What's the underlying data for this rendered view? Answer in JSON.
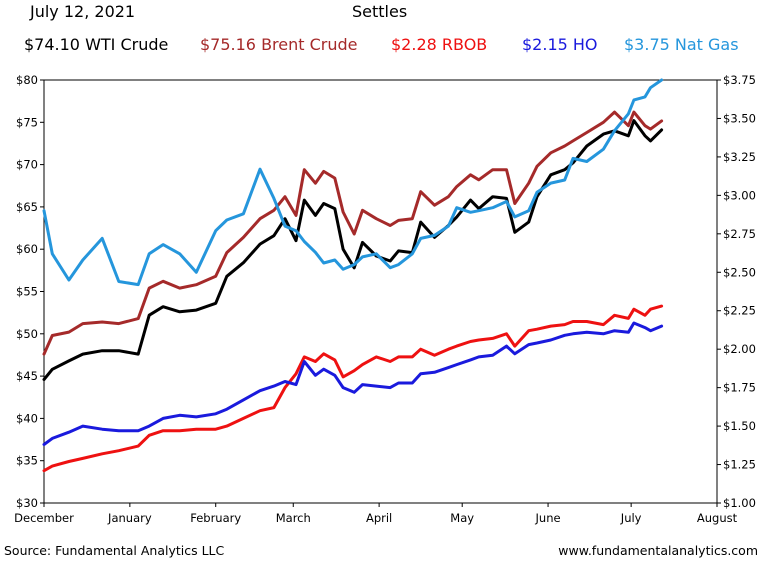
{
  "header": {
    "date": "July 12, 2021",
    "title": "Settles",
    "legend": [
      {
        "label": "$74.10 WTI Crude",
        "color": "#000000"
      },
      {
        "label": "$75.16 Brent Crude",
        "color": "#a52a2a"
      },
      {
        "label": "$2.28 RBOB",
        "color": "#ee1111"
      },
      {
        "label": "$2.15 HO",
        "color": "#1a1add"
      },
      {
        "label": "$3.75 Nat Gas",
        "color": "#2596dc"
      }
    ]
  },
  "footer": {
    "source": "Source: Fundamental Analytics LLC",
    "website": "www.fundamentalanalytics.com"
  },
  "chart_data": {
    "type": "line",
    "title": "Settles",
    "subtitle": "July 12, 2021",
    "x_axis": {
      "type": "date",
      "range": [
        "2020-12-01",
        "2021-08-01"
      ],
      "tick_labels": [
        "December",
        "January",
        "February",
        "March",
        "April",
        "May",
        "June",
        "July",
        "August"
      ]
    },
    "y_left": {
      "range": [
        30,
        80
      ],
      "ticks": [
        30,
        35,
        40,
        45,
        50,
        55,
        60,
        65,
        70,
        75,
        80
      ],
      "tick_labels": [
        "$30",
        "$35",
        "$40",
        "$45",
        "$50",
        "$55",
        "$60",
        "$65",
        "$70",
        "$75",
        "$80"
      ]
    },
    "y_right": {
      "range": [
        1.0,
        3.75
      ],
      "ticks": [
        1.0,
        1.25,
        1.5,
        1.75,
        2.0,
        2.25,
        2.5,
        2.75,
        3.0,
        3.25,
        3.5,
        3.75
      ],
      "tick_labels": [
        "$1.00",
        "$1.25",
        "$1.50",
        "$1.75",
        "$2.00",
        "$2.25",
        "$2.50",
        "$2.75",
        "$3.00",
        "$3.25",
        "$3.50",
        "$3.75"
      ]
    },
    "grid": false,
    "series": [
      {
        "name": "WTI Crude",
        "axis": "left",
        "color": "#000000",
        "x": [
          "2020-12-01",
          "2020-12-04",
          "2020-12-10",
          "2020-12-15",
          "2020-12-22",
          "2020-12-28",
          "2021-01-04",
          "2021-01-08",
          "2021-01-13",
          "2021-01-19",
          "2021-01-25",
          "2021-02-01",
          "2021-02-05",
          "2021-02-11",
          "2021-02-17",
          "2021-02-22",
          "2021-02-26",
          "2021-03-02",
          "2021-03-05",
          "2021-03-09",
          "2021-03-12",
          "2021-03-16",
          "2021-03-19",
          "2021-03-23",
          "2021-03-26",
          "2021-03-31",
          "2021-04-05",
          "2021-04-08",
          "2021-04-13",
          "2021-04-16",
          "2021-04-21",
          "2021-04-26",
          "2021-04-29",
          "2021-05-04",
          "2021-05-07",
          "2021-05-12",
          "2021-05-17",
          "2021-05-20",
          "2021-05-25",
          "2021-05-28",
          "2021-06-02",
          "2021-06-07",
          "2021-06-10",
          "2021-06-15",
          "2021-06-21",
          "2021-06-25",
          "2021-06-30",
          "2021-07-02",
          "2021-07-06",
          "2021-07-08",
          "2021-07-12"
        ],
        "values": [
          44.6,
          45.8,
          46.8,
          47.6,
          48.0,
          48.0,
          47.6,
          52.2,
          53.2,
          52.6,
          52.8,
          53.6,
          56.8,
          58.4,
          60.6,
          61.6,
          63.6,
          61.0,
          65.8,
          64.0,
          65.4,
          64.8,
          60.0,
          57.8,
          60.8,
          59.2,
          58.6,
          59.8,
          59.6,
          63.2,
          61.4,
          62.8,
          63.8,
          65.8,
          64.8,
          66.2,
          66.0,
          62.0,
          63.2,
          66.2,
          68.8,
          69.4,
          70.2,
          72.2,
          73.6,
          74.0,
          73.4,
          75.2,
          73.4,
          72.8,
          74.1
        ]
      },
      {
        "name": "Brent Crude",
        "axis": "left",
        "color": "#a52a2a",
        "x": [
          "2020-12-01",
          "2020-12-04",
          "2020-12-10",
          "2020-12-15",
          "2020-12-22",
          "2020-12-28",
          "2021-01-04",
          "2021-01-08",
          "2021-01-13",
          "2021-01-19",
          "2021-01-25",
          "2021-02-01",
          "2021-02-05",
          "2021-02-11",
          "2021-02-17",
          "2021-02-22",
          "2021-02-26",
          "2021-03-02",
          "2021-03-05",
          "2021-03-09",
          "2021-03-12",
          "2021-03-16",
          "2021-03-19",
          "2021-03-23",
          "2021-03-26",
          "2021-03-31",
          "2021-04-05",
          "2021-04-08",
          "2021-04-13",
          "2021-04-16",
          "2021-04-21",
          "2021-04-26",
          "2021-04-29",
          "2021-05-04",
          "2021-05-07",
          "2021-05-12",
          "2021-05-17",
          "2021-05-20",
          "2021-05-25",
          "2021-05-28",
          "2021-06-02",
          "2021-06-07",
          "2021-06-10",
          "2021-06-15",
          "2021-06-21",
          "2021-06-25",
          "2021-06-30",
          "2021-07-02",
          "2021-07-06",
          "2021-07-08",
          "2021-07-12"
        ],
        "values": [
          47.6,
          49.8,
          50.2,
          51.2,
          51.4,
          51.2,
          51.8,
          55.4,
          56.2,
          55.4,
          55.8,
          56.8,
          59.6,
          61.4,
          63.6,
          64.6,
          66.2,
          64.0,
          69.4,
          67.8,
          69.2,
          68.4,
          64.4,
          61.8,
          64.6,
          63.6,
          62.8,
          63.4,
          63.6,
          66.8,
          65.2,
          66.2,
          67.4,
          68.8,
          68.2,
          69.4,
          69.4,
          65.4,
          67.8,
          69.8,
          71.4,
          72.2,
          72.8,
          73.8,
          75.0,
          76.2,
          74.6,
          76.2,
          74.6,
          74.2,
          75.16
        ]
      },
      {
        "name": "RBOB",
        "axis": "right",
        "color": "#ee1111",
        "x": [
          "2020-12-01",
          "2020-12-04",
          "2020-12-10",
          "2020-12-15",
          "2020-12-22",
          "2020-12-28",
          "2021-01-04",
          "2021-01-08",
          "2021-01-13",
          "2021-01-19",
          "2021-01-25",
          "2021-02-01",
          "2021-02-05",
          "2021-02-11",
          "2021-02-17",
          "2021-02-22",
          "2021-02-26",
          "2021-03-02",
          "2021-03-05",
          "2021-03-09",
          "2021-03-12",
          "2021-03-16",
          "2021-03-19",
          "2021-03-23",
          "2021-03-26",
          "2021-03-31",
          "2021-04-05",
          "2021-04-08",
          "2021-04-13",
          "2021-04-16",
          "2021-04-21",
          "2021-04-26",
          "2021-04-29",
          "2021-05-04",
          "2021-05-07",
          "2021-05-12",
          "2021-05-17",
          "2021-05-20",
          "2021-05-25",
          "2021-05-28",
          "2021-06-02",
          "2021-06-07",
          "2021-06-10",
          "2021-06-15",
          "2021-06-21",
          "2021-06-25",
          "2021-06-30",
          "2021-07-02",
          "2021-07-06",
          "2021-07-08",
          "2021-07-12"
        ],
        "values": [
          1.21,
          1.24,
          1.27,
          1.29,
          1.32,
          1.34,
          1.37,
          1.44,
          1.47,
          1.47,
          1.48,
          1.48,
          1.5,
          1.55,
          1.6,
          1.62,
          1.75,
          1.84,
          1.95,
          1.92,
          1.97,
          1.93,
          1.82,
          1.86,
          1.9,
          1.95,
          1.92,
          1.95,
          1.95,
          2.0,
          1.96,
          2.0,
          2.02,
          2.05,
          2.06,
          2.07,
          2.1,
          2.02,
          2.12,
          2.13,
          2.15,
          2.16,
          2.18,
          2.18,
          2.16,
          2.22,
          2.2,
          2.26,
          2.22,
          2.26,
          2.28
        ]
      },
      {
        "name": "HO",
        "axis": "right",
        "color": "#1a1add",
        "x": [
          "2020-12-01",
          "2020-12-04",
          "2020-12-10",
          "2020-12-15",
          "2020-12-22",
          "2020-12-28",
          "2021-01-04",
          "2021-01-08",
          "2021-01-13",
          "2021-01-19",
          "2021-01-25",
          "2021-02-01",
          "2021-02-05",
          "2021-02-11",
          "2021-02-17",
          "2021-02-22",
          "2021-02-26",
          "2021-03-02",
          "2021-03-05",
          "2021-03-09",
          "2021-03-12",
          "2021-03-16",
          "2021-03-19",
          "2021-03-23",
          "2021-03-26",
          "2021-03-31",
          "2021-04-05",
          "2021-04-08",
          "2021-04-13",
          "2021-04-16",
          "2021-04-21",
          "2021-04-26",
          "2021-04-29",
          "2021-05-04",
          "2021-05-07",
          "2021-05-12",
          "2021-05-17",
          "2021-05-20",
          "2021-05-25",
          "2021-05-28",
          "2021-06-02",
          "2021-06-07",
          "2021-06-10",
          "2021-06-15",
          "2021-06-21",
          "2021-06-25",
          "2021-06-30",
          "2021-07-02",
          "2021-07-06",
          "2021-07-08",
          "2021-07-12"
        ],
        "values": [
          1.38,
          1.42,
          1.46,
          1.5,
          1.48,
          1.47,
          1.47,
          1.5,
          1.55,
          1.57,
          1.56,
          1.58,
          1.61,
          1.67,
          1.73,
          1.76,
          1.79,
          1.77,
          1.92,
          1.83,
          1.87,
          1.83,
          1.75,
          1.72,
          1.77,
          1.76,
          1.75,
          1.78,
          1.78,
          1.84,
          1.85,
          1.88,
          1.9,
          1.93,
          1.95,
          1.96,
          2.02,
          1.97,
          2.03,
          2.04,
          2.06,
          2.09,
          2.1,
          2.11,
          2.1,
          2.12,
          2.11,
          2.17,
          2.14,
          2.12,
          2.15
        ]
      },
      {
        "name": "Nat Gas",
        "axis": "right",
        "color": "#2596dc",
        "x": [
          "2020-12-01",
          "2020-12-04",
          "2020-12-10",
          "2020-12-15",
          "2020-12-22",
          "2020-12-28",
          "2021-01-04",
          "2021-01-08",
          "2021-01-13",
          "2021-01-19",
          "2021-01-25",
          "2021-02-01",
          "2021-02-05",
          "2021-02-11",
          "2021-02-17",
          "2021-02-22",
          "2021-02-26",
          "2021-03-02",
          "2021-03-05",
          "2021-03-09",
          "2021-03-12",
          "2021-03-16",
          "2021-03-19",
          "2021-03-23",
          "2021-03-26",
          "2021-03-31",
          "2021-04-05",
          "2021-04-08",
          "2021-04-13",
          "2021-04-16",
          "2021-04-21",
          "2021-04-26",
          "2021-04-29",
          "2021-05-04",
          "2021-05-07",
          "2021-05-12",
          "2021-05-17",
          "2021-05-20",
          "2021-05-25",
          "2021-05-28",
          "2021-06-02",
          "2021-06-07",
          "2021-06-10",
          "2021-06-15",
          "2021-06-21",
          "2021-06-25",
          "2021-06-30",
          "2021-07-02",
          "2021-07-06",
          "2021-07-08",
          "2021-07-12"
        ],
        "values": [
          2.9,
          2.62,
          2.45,
          2.58,
          2.72,
          2.44,
          2.42,
          2.62,
          2.68,
          2.62,
          2.5,
          2.77,
          2.84,
          2.88,
          3.17,
          2.98,
          2.8,
          2.77,
          2.7,
          2.63,
          2.56,
          2.58,
          2.52,
          2.55,
          2.6,
          2.62,
          2.53,
          2.55,
          2.62,
          2.72,
          2.74,
          2.8,
          2.92,
          2.89,
          2.9,
          2.92,
          2.96,
          2.86,
          2.9,
          3.02,
          3.08,
          3.1,
          3.24,
          3.22,
          3.3,
          3.42,
          3.53,
          3.62,
          3.64,
          3.7,
          3.75
        ]
      }
    ]
  }
}
